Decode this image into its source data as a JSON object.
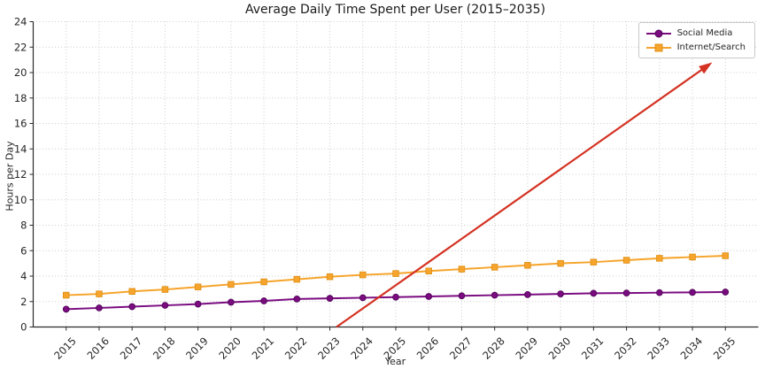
{
  "chart_data": {
    "type": "line",
    "title": "Average Daily Time Spent per User (2015–2035)",
    "xlabel": "Year",
    "ylabel": "Hours per Day",
    "x": [
      2015,
      2016,
      2017,
      2018,
      2019,
      2020,
      2021,
      2022,
      2023,
      2024,
      2025,
      2026,
      2027,
      2028,
      2029,
      2030,
      2031,
      2032,
      2033,
      2034,
      2035
    ],
    "series": [
      {
        "name": "Social Media",
        "marker": "circle",
        "color": "#7a0c80",
        "marker_edge_color": "#52045a",
        "values": [
          1.4,
          1.5,
          1.6,
          1.7,
          1.8,
          1.95,
          2.05,
          2.2,
          2.25,
          2.3,
          2.35,
          2.4,
          2.45,
          2.5,
          2.55,
          2.6,
          2.65,
          2.67,
          2.7,
          2.72,
          2.75
        ]
      },
      {
        "name": "Internet/Search",
        "marker": "square",
        "color": "#f6a42b",
        "marker_edge_color": "#e0921a",
        "values": [
          2.5,
          2.6,
          2.8,
          2.95,
          3.15,
          3.35,
          3.55,
          3.75,
          3.95,
          4.1,
          4.2,
          4.4,
          4.55,
          4.7,
          4.85,
          5.0,
          5.1,
          5.25,
          5.4,
          5.5,
          5.6
        ]
      }
    ],
    "xlim": [
      2014,
      2036
    ],
    "ylim": [
      0,
      24
    ],
    "ytick_step": 2,
    "xtick_rotation_deg": 45,
    "grid": {
      "visible": true,
      "style": "dotted",
      "color": "#cccccc"
    },
    "axis_color": "#2b2b2b",
    "tick_text_color": "#262626",
    "legend": {
      "position": "top-right"
    },
    "annotation": {
      "type": "arrow",
      "color": "#d43222",
      "start": [
        2023.2,
        0
      ],
      "end": [
        2034.6,
        20.8
      ]
    }
  }
}
